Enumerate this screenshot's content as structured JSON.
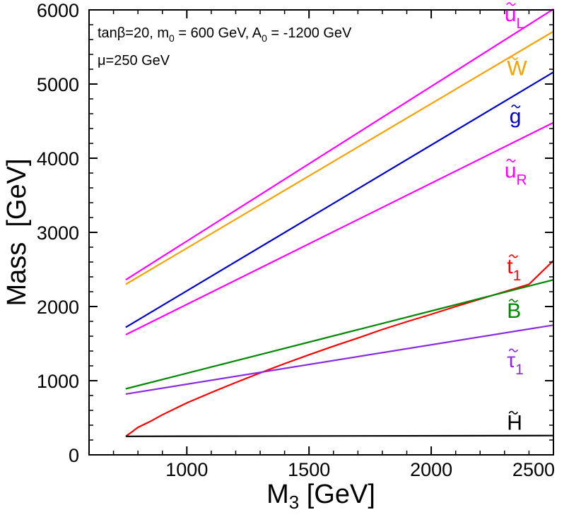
{
  "chart_data": {
    "type": "line",
    "title": "",
    "xlabel": "M",
    "xlabel_sub": "3",
    "xlabel_unit": " [GeV]",
    "ylabel": "Mass  [GeV]",
    "xlim": [
      600,
      2500
    ],
    "ylim": [
      0,
      6000
    ],
    "xticks": [
      1000,
      1500,
      2000,
      2500
    ],
    "yticks": [
      0,
      1000,
      2000,
      3000,
      4000,
      5000,
      6000
    ],
    "x_minor_step": 100,
    "y_minor_step": 200,
    "grid": false,
    "annotations": [
      {
        "id": "params",
        "parts": [
          {
            "t": "tanβ=20, m"
          },
          {
            "t": "0",
            "sub": true
          },
          {
            "t": " = 600 GeV, A"
          },
          {
            "t": "0",
            "sub": true
          },
          {
            "t": " = -1200 GeV"
          }
        ]
      },
      {
        "id": "mu",
        "parts": [
          {
            "t": "μ=250 GeV"
          }
        ]
      }
    ],
    "series": [
      {
        "name": "ũ_L",
        "label": "u",
        "sub": "L",
        "color": "#ff00ff",
        "x": [
          750,
          2500
        ],
        "y": [
          2360,
          6010
        ],
        "label_at": [
          2300,
          5850
        ]
      },
      {
        "name": "W̃",
        "label": "W",
        "sub": "",
        "color": "#f5a300",
        "x": [
          750,
          2500
        ],
        "y": [
          2300,
          5710
        ],
        "label_at": [
          2310,
          5120
        ]
      },
      {
        "name": "g̃",
        "label": "g",
        "sub": "",
        "color": "#0000cc",
        "x": [
          750,
          2500
        ],
        "y": [
          1720,
          5160
        ],
        "label_at": [
          2320,
          4470
        ]
      },
      {
        "name": "ũ_R",
        "label": "u",
        "sub": "R",
        "color": "#ff00ff",
        "x": [
          750,
          2500
        ],
        "y": [
          1620,
          4480
        ],
        "label_at": [
          2300,
          3740
        ]
      },
      {
        "name": "t̃_1",
        "label": "t",
        "sub": "1",
        "color": "#ff0000",
        "x": [
          750,
          780,
          800,
          850,
          900,
          1000,
          1100,
          1200,
          1300,
          1400,
          1500,
          1600,
          1700,
          1800,
          1900,
          2000,
          2100,
          2200,
          2300,
          2400,
          2500
        ],
        "y": [
          250,
          320,
          370,
          450,
          540,
          700,
          840,
          975,
          1105,
          1230,
          1350,
          1465,
          1575,
          1690,
          1795,
          1895,
          2000,
          2100,
          2200,
          2300,
          2620
        ],
        "label_at": [
          2310,
          2450
        ]
      },
      {
        "name": "B̃",
        "label": "B",
        "sub": "",
        "color": "#008800",
        "x": [
          750,
          2500
        ],
        "y": [
          890,
          2360
        ],
        "label_at": [
          2310,
          1850
        ]
      },
      {
        "name": "τ̃_1",
        "label": "τ",
        "sub": "1",
        "color": "#8a2be2",
        "x": [
          750,
          2500
        ],
        "y": [
          820,
          1750
        ],
        "label_at": [
          2310,
          1180
        ]
      },
      {
        "name": "H̃",
        "label": "H",
        "sub": "",
        "color": "#000000",
        "x": [
          750,
          2500
        ],
        "y": [
          250,
          260
        ],
        "label_at": [
          2310,
          340
        ]
      }
    ]
  }
}
